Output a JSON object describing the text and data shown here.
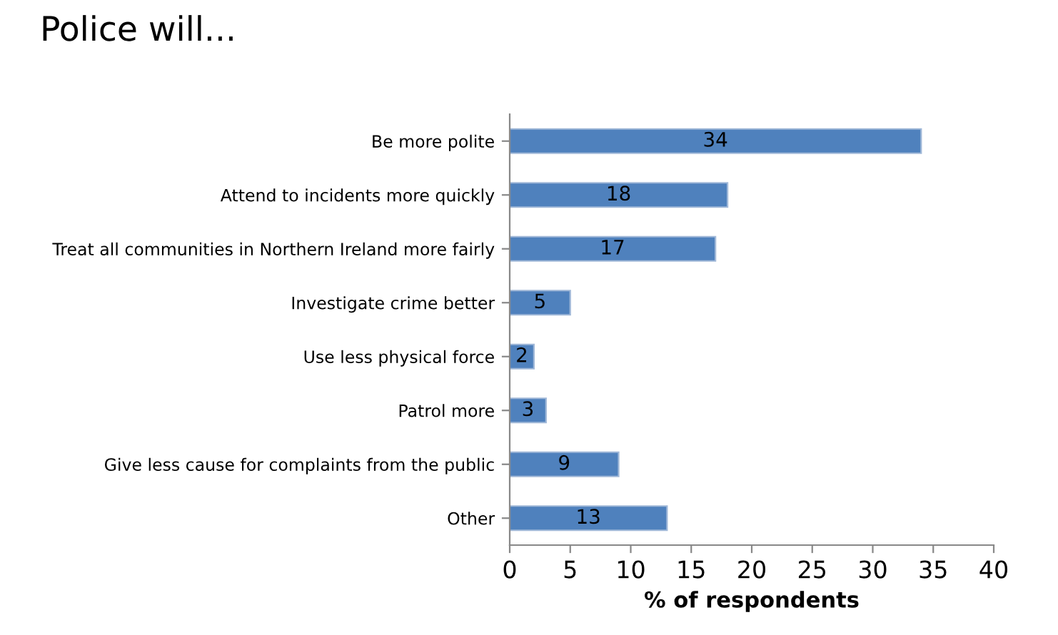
{
  "chart_data": {
    "type": "bar",
    "orientation": "horizontal",
    "title": "Police will...",
    "xlabel": "% of respondents",
    "categories": [
      "Be more polite",
      "Attend to incidents more quickly",
      "Treat all communities in Northern Ireland more fairly",
      "Investigate crime better",
      "Use less physical force",
      "Patrol more",
      "Give less cause for complaints from the public",
      "Other"
    ],
    "values": [
      34,
      18,
      17,
      5,
      2,
      3,
      9,
      13
    ],
    "color": "#4f81bd",
    "data_labels": true,
    "xlim": [
      0,
      40
    ],
    "xticks": [
      0,
      5,
      10,
      15,
      20,
      25,
      30,
      35,
      40
    ],
    "grid": false
  }
}
